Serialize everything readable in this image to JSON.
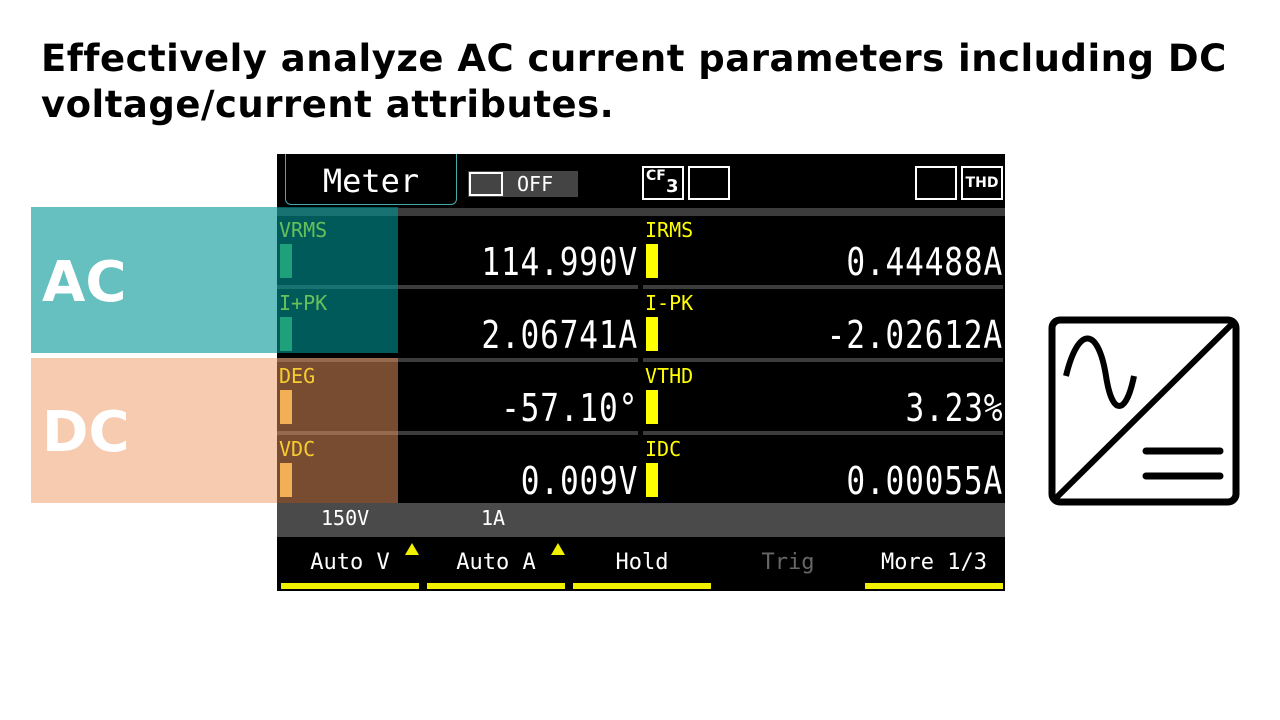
{
  "title": "Effectively analyze AC current parameters including DC voltage/current attributes.",
  "overlays": {
    "ac": "AC",
    "dc": "DC"
  },
  "meter": {
    "header": {
      "mode": "Meter",
      "log_state": "OFF",
      "cf_label": "CF",
      "cf_sub": "3",
      "thd": "THD"
    },
    "cells": [
      {
        "label": "VRMS",
        "value": "114.990V"
      },
      {
        "label": "IRMS",
        "value": "0.44488A"
      },
      {
        "label": "I+PK",
        "value": "2.06741A"
      },
      {
        "label": "I-PK",
        "value": "-2.02612A"
      },
      {
        "label": "DEG",
        "value": "-57.10°"
      },
      {
        "label": "VTHD",
        "value": "3.23%"
      },
      {
        "label": "VDC",
        "value": "0.009V"
      },
      {
        "label": "IDC",
        "value": "0.00055A"
      }
    ],
    "ranges": {
      "voltage": "150V",
      "current": "1A"
    },
    "softkeys": [
      "Auto V",
      "Auto A",
      "Hold",
      "Trig",
      "More 1/3"
    ]
  }
}
